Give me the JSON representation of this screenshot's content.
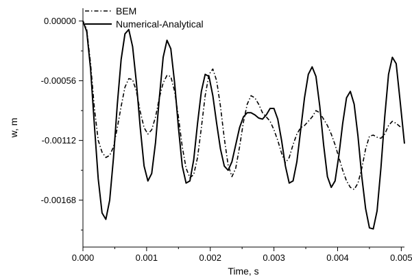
{
  "chart_data": {
    "type": "line",
    "title": "",
    "xlabel": "Time, s",
    "ylabel": "w, m",
    "xlim": [
      0,
      0.00505
    ],
    "ylim": [
      -0.00212,
      0.00012
    ],
    "x_ticks": [
      0,
      0.001,
      0.002,
      0.003,
      0.004,
      0.005
    ],
    "x_tick_labels": [
      "0.000",
      "0.001",
      "0.002",
      "0.003",
      "0.004",
      "0.005"
    ],
    "y_ticks": [
      0,
      -0.00056,
      -0.00112,
      -0.00168
    ],
    "y_tick_labels": [
      "0.00000",
      "-0.00056",
      "-0.00112",
      "-0.00168"
    ],
    "grid": false,
    "legend_position": "top-left",
    "series": [
      {
        "name": "BEM",
        "line_style": "dash-dot",
        "color": "#000000",
        "points": [
          [
            0.0,
            0.0
          ],
          [
            6e-05,
            -8e-05
          ],
          [
            0.00012,
            -0.0004
          ],
          [
            0.00018,
            -0.00082
          ],
          [
            0.00024,
            -0.00112
          ],
          [
            0.0003,
            -0.00123
          ],
          [
            0.00036,
            -0.00128
          ],
          [
            0.00042,
            -0.00126
          ],
          [
            0.00048,
            -0.00118
          ],
          [
            0.00054,
            -0.001
          ],
          [
            0.0006,
            -0.0008
          ],
          [
            0.00066,
            -0.00062
          ],
          [
            0.00072,
            -0.00054
          ],
          [
            0.00078,
            -0.00055
          ],
          [
            0.00084,
            -0.00066
          ],
          [
            0.0009,
            -0.00085
          ],
          [
            0.00096,
            -0.001
          ],
          [
            0.00102,
            -0.00106
          ],
          [
            0.00108,
            -0.00102
          ],
          [
            0.00114,
            -0.0009
          ],
          [
            0.0012,
            -0.00072
          ],
          [
            0.00126,
            -0.00058
          ],
          [
            0.00132,
            -0.00051
          ],
          [
            0.00138,
            -0.00052
          ],
          [
            0.00144,
            -0.00066
          ],
          [
            0.0015,
            -0.0009
          ],
          [
            0.00156,
            -0.00118
          ],
          [
            0.00162,
            -0.00138
          ],
          [
            0.00168,
            -0.00147
          ],
          [
            0.00174,
            -0.00144
          ],
          [
            0.0018,
            -0.00128
          ],
          [
            0.00186,
            -0.001
          ],
          [
            0.00192,
            -0.0007
          ],
          [
            0.00198,
            -0.0005
          ],
          [
            0.00204,
            -0.00045
          ],
          [
            0.0021,
            -0.00056
          ],
          [
            0.00216,
            -0.0008
          ],
          [
            0.00222,
            -0.0011
          ],
          [
            0.00228,
            -0.00135
          ],
          [
            0.00234,
            -0.00146
          ],
          [
            0.0024,
            -0.00138
          ],
          [
            0.00246,
            -0.00118
          ],
          [
            0.00252,
            -0.00095
          ],
          [
            0.00258,
            -0.00078
          ],
          [
            0.00264,
            -0.0007
          ],
          [
            0.0027,
            -0.00072
          ],
          [
            0.00276,
            -0.00078
          ],
          [
            0.00282,
            -0.00086
          ],
          [
            0.00288,
            -0.0009
          ],
          [
            0.00294,
            -0.00094
          ],
          [
            0.003,
            -0.00102
          ],
          [
            0.00306,
            -0.00112
          ],
          [
            0.00312,
            -0.00124
          ],
          [
            0.00318,
            -0.00133
          ],
          [
            0.00324,
            -0.00128
          ],
          [
            0.0033,
            -0.00116
          ],
          [
            0.00336,
            -0.00106
          ],
          [
            0.00342,
            -0.001
          ],
          [
            0.00348,
            -0.00098
          ],
          [
            0.00354,
            -0.00094
          ],
          [
            0.0036,
            -0.0009
          ],
          [
            0.00366,
            -0.00084
          ],
          [
            0.00372,
            -0.00086
          ],
          [
            0.00378,
            -0.00092
          ],
          [
            0.00384,
            -0.00098
          ],
          [
            0.0039,
            -0.00106
          ],
          [
            0.00396,
            -0.00116
          ],
          [
            0.00402,
            -0.00128
          ],
          [
            0.00408,
            -0.0014
          ],
          [
            0.00414,
            -0.0015
          ],
          [
            0.0042,
            -0.00156
          ],
          [
            0.00426,
            -0.00158
          ],
          [
            0.00432,
            -0.00152
          ],
          [
            0.00438,
            -0.00138
          ],
          [
            0.00444,
            -0.0012
          ],
          [
            0.0045,
            -0.00108
          ],
          [
            0.00456,
            -0.00107
          ],
          [
            0.00462,
            -0.00109
          ],
          [
            0.00468,
            -0.0011
          ],
          [
            0.00474,
            -0.00106
          ],
          [
            0.0048,
            -0.00098
          ],
          [
            0.00486,
            -0.00094
          ],
          [
            0.00492,
            -0.00096
          ],
          [
            0.005,
            -0.001
          ]
        ]
      },
      {
        "name": "Numerical-Analytical",
        "line_style": "solid",
        "color": "#000000",
        "points": [
          [
            0.0,
            0.0
          ],
          [
            6e-05,
            -0.0001
          ],
          [
            0.00012,
            -0.00045
          ],
          [
            0.00018,
            -0.00098
          ],
          [
            0.00024,
            -0.00148
          ],
          [
            0.0003,
            -0.0018
          ],
          [
            0.00036,
            -0.00186
          ],
          [
            0.00042,
            -0.00168
          ],
          [
            0.00048,
            -0.00128
          ],
          [
            0.00054,
            -0.00078
          ],
          [
            0.0006,
            -0.00036
          ],
          [
            0.00066,
            -0.00012
          ],
          [
            0.00072,
            -8e-05
          ],
          [
            0.00078,
            -0.00024
          ],
          [
            0.00084,
            -0.00058
          ],
          [
            0.0009,
            -0.001
          ],
          [
            0.00096,
            -0.00136
          ],
          [
            0.00102,
            -0.0015
          ],
          [
            0.00108,
            -0.00143
          ],
          [
            0.00114,
            -0.00114
          ],
          [
            0.0012,
            -0.00072
          ],
          [
            0.00126,
            -0.00034
          ],
          [
            0.00132,
            -0.00018
          ],
          [
            0.00138,
            -0.00026
          ],
          [
            0.00144,
            -0.00058
          ],
          [
            0.0015,
            -0.001
          ],
          [
            0.00156,
            -0.00136
          ],
          [
            0.00162,
            -0.00152
          ],
          [
            0.00168,
            -0.0015
          ],
          [
            0.00174,
            -0.0013
          ],
          [
            0.0018,
            -0.00096
          ],
          [
            0.00186,
            -0.00066
          ],
          [
            0.00192,
            -0.0005
          ],
          [
            0.00198,
            -0.00052
          ],
          [
            0.00204,
            -0.0007
          ],
          [
            0.0021,
            -0.00096
          ],
          [
            0.00216,
            -0.0012
          ],
          [
            0.00222,
            -0.00136
          ],
          [
            0.00228,
            -0.0014
          ],
          [
            0.00234,
            -0.00132
          ],
          [
            0.0024,
            -0.00116
          ],
          [
            0.00246,
            -0.001
          ],
          [
            0.00252,
            -0.0009
          ],
          [
            0.00258,
            -0.00086
          ],
          [
            0.00264,
            -0.00086
          ],
          [
            0.0027,
            -0.00088
          ],
          [
            0.00276,
            -0.00091
          ],
          [
            0.00282,
            -0.00092
          ],
          [
            0.00288,
            -0.00088
          ],
          [
            0.00294,
            -0.00082
          ],
          [
            0.003,
            -0.00082
          ],
          [
            0.00306,
            -0.00092
          ],
          [
            0.00312,
            -0.00112
          ],
          [
            0.00318,
            -0.00136
          ],
          [
            0.00324,
            -0.00152
          ],
          [
            0.0033,
            -0.0015
          ],
          [
            0.00336,
            -0.00132
          ],
          [
            0.00342,
            -0.00102
          ],
          [
            0.00348,
            -0.00072
          ],
          [
            0.00354,
            -0.0005
          ],
          [
            0.0036,
            -0.00043
          ],
          [
            0.00366,
            -0.00052
          ],
          [
            0.00372,
            -0.0008
          ],
          [
            0.00378,
            -0.00116
          ],
          [
            0.00384,
            -0.00146
          ],
          [
            0.0039,
            -0.00156
          ],
          [
            0.00396,
            -0.0015
          ],
          [
            0.00402,
            -0.00126
          ],
          [
            0.00408,
            -0.00096
          ],
          [
            0.00414,
            -0.00072
          ],
          [
            0.0042,
            -0.00066
          ],
          [
            0.00426,
            -0.00078
          ],
          [
            0.00432,
            -0.00108
          ],
          [
            0.00438,
            -0.00146
          ],
          [
            0.00444,
            -0.00176
          ],
          [
            0.0045,
            -0.00194
          ],
          [
            0.00456,
            -0.00195
          ],
          [
            0.00462,
            -0.00178
          ],
          [
            0.00468,
            -0.00138
          ],
          [
            0.00474,
            -0.0009
          ],
          [
            0.0048,
            -0.0005
          ],
          [
            0.00486,
            -0.00034
          ],
          [
            0.00492,
            -0.0004
          ],
          [
            0.00498,
            -0.00074
          ],
          [
            0.00505,
            -0.00115
          ]
        ]
      }
    ]
  }
}
